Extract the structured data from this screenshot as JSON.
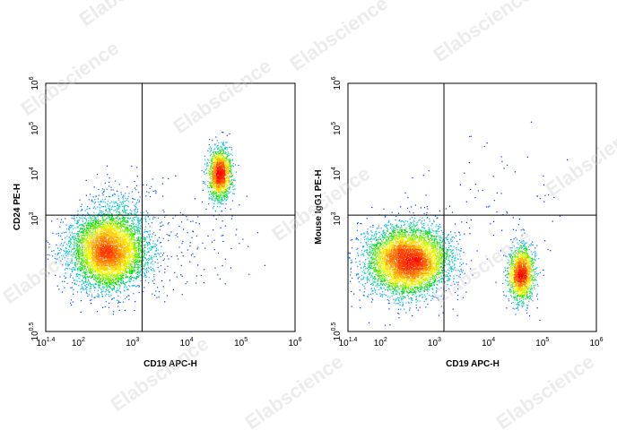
{
  "watermark_text": "Elabscience",
  "chart_data": [
    {
      "type": "scatter",
      "title": "",
      "xlabel": "CD19 APC-H",
      "ylabel": "CD24 PE-H",
      "x_scale": "log",
      "y_scale": "log",
      "xlim": [
        25,
        1000000
      ],
      "ylim": [
        3.16,
        1000000
      ],
      "x_ticks": [
        {
          "value": 25,
          "base": "10",
          "exp": "1.4"
        },
        {
          "value": 100,
          "base": "10",
          "exp": "2"
        },
        {
          "value": 1000,
          "base": "10",
          "exp": "3"
        },
        {
          "value": 10000,
          "base": "10",
          "exp": "4"
        },
        {
          "value": 100000,
          "base": "10",
          "exp": "5"
        },
        {
          "value": 1000000,
          "base": "10",
          "exp": "6"
        }
      ],
      "y_ticks": [
        {
          "value": 3.16,
          "base": "10",
          "exp": "0.5"
        },
        {
          "value": 1000,
          "base": "10",
          "exp": "3"
        },
        {
          "value": 10000,
          "base": "10",
          "exp": "4"
        },
        {
          "value": 100000,
          "base": "10",
          "exp": "5"
        },
        {
          "value": 1000000,
          "base": "10",
          "exp": "6"
        }
      ],
      "quadrant_gate": {
        "x": 1500,
        "y": 1200
      },
      "color_scale": [
        "#0000ff",
        "#00bfff",
        "#00e000",
        "#ffff00",
        "#ff8000",
        "#ff0000"
      ],
      "populations": [
        {
          "center": [
            350,
            200
          ],
          "spread_decades": [
            0.35,
            0.42
          ],
          "events": 5200
        },
        {
          "center": [
            40000,
            10000
          ],
          "spread_decades": [
            0.1,
            0.28
          ],
          "events": 1500
        },
        {
          "center": [
            8000,
            300
          ],
          "spread_decades": [
            0.6,
            0.6
          ],
          "events": 180
        },
        {
          "center": [
            600,
            2500
          ],
          "spread_decades": [
            0.35,
            0.3
          ],
          "events": 140
        }
      ]
    },
    {
      "type": "scatter",
      "title": "",
      "xlabel": "CD19 APC-H",
      "ylabel": "Mouse IgG1 PE-H",
      "x_scale": "log",
      "y_scale": "log",
      "xlim": [
        25,
        1000000
      ],
      "ylim": [
        3.16,
        1000000
      ],
      "x_ticks": [
        {
          "value": 25,
          "base": "10",
          "exp": "1.4"
        },
        {
          "value": 100,
          "base": "10",
          "exp": "2"
        },
        {
          "value": 1000,
          "base": "10",
          "exp": "3"
        },
        {
          "value": 10000,
          "base": "10",
          "exp": "4"
        },
        {
          "value": 100000,
          "base": "10",
          "exp": "5"
        },
        {
          "value": 1000000,
          "base": "10",
          "exp": "6"
        }
      ],
      "y_ticks": [
        {
          "value": 3.16,
          "base": "10",
          "exp": "0.5"
        },
        {
          "value": 1000,
          "base": "10",
          "exp": "3"
        },
        {
          "value": 10000,
          "base": "10",
          "exp": "4"
        },
        {
          "value": 100000,
          "base": "10",
          "exp": "5"
        },
        {
          "value": 1000000,
          "base": "10",
          "exp": "6"
        }
      ],
      "quadrant_gate": {
        "x": 1500,
        "y": 1200
      },
      "color_scale": [
        "#0000ff",
        "#00bfff",
        "#00e000",
        "#ffff00",
        "#ff8000",
        "#ff0000"
      ],
      "populations": [
        {
          "center": [
            320,
            120
          ],
          "spread_decades": [
            0.38,
            0.38
          ],
          "events": 5200
        },
        {
          "center": [
            40000,
            60
          ],
          "spread_decades": [
            0.12,
            0.3
          ],
          "events": 1500
        },
        {
          "center": [
            9000,
            2000
          ],
          "spread_decades": [
            0.7,
            0.7
          ],
          "events": 70
        }
      ]
    }
  ]
}
